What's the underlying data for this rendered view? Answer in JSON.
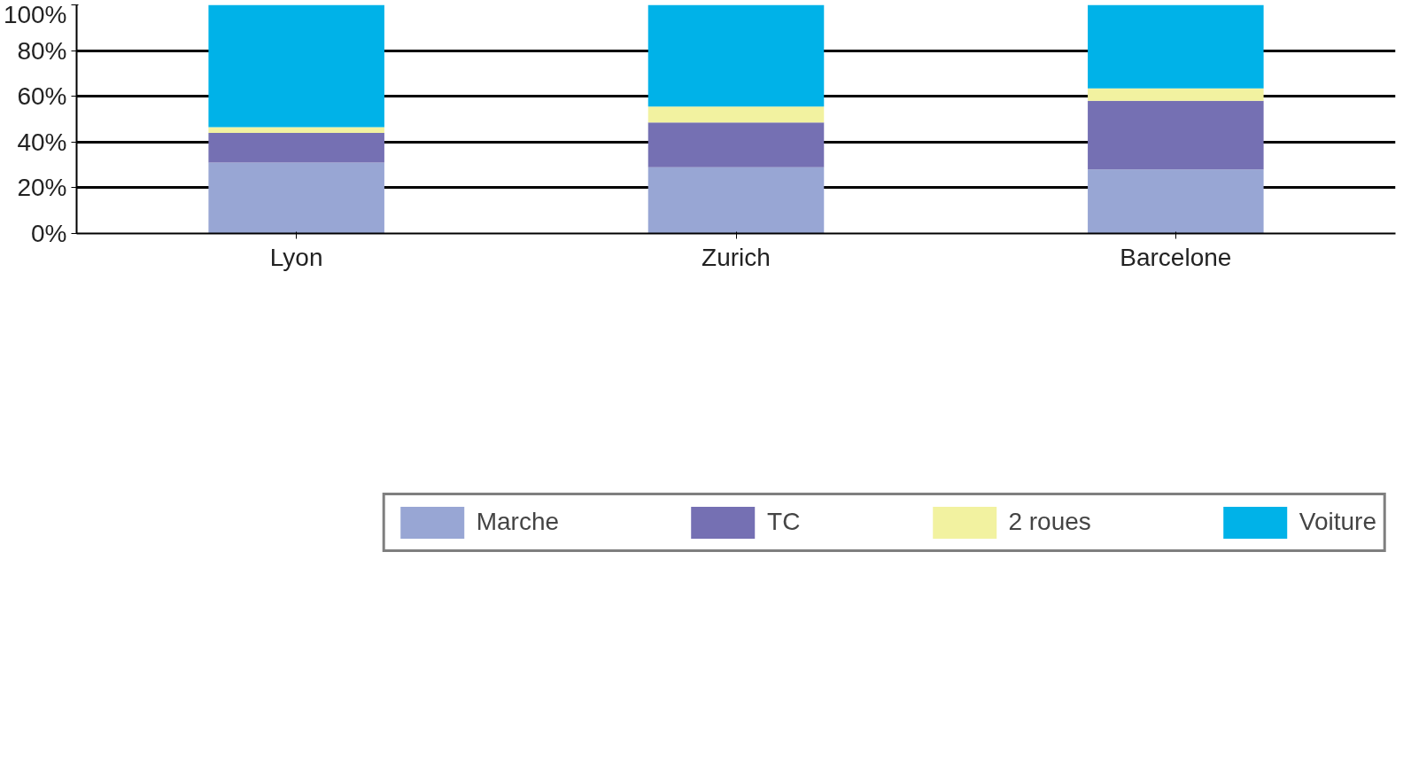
{
  "chart_data": {
    "type": "bar",
    "stacked": true,
    "categories": [
      "Lyon",
      "Zurich",
      "Barcelone"
    ],
    "series": [
      {
        "name": "Marche",
        "color": "#98a6d4",
        "values": [
          31,
          29,
          28
        ]
      },
      {
        "name": "TC",
        "color": "#7570b3",
        "values": [
          13,
          19.5,
          30
        ]
      },
      {
        "name": "2 roues",
        "color": "#f2f2a0",
        "values": [
          2.5,
          7,
          5.5
        ]
      },
      {
        "name": "Voiture",
        "color": "#00b2e8",
        "values": [
          53.5,
          44.5,
          36.5
        ]
      }
    ],
    "ylim": [
      0,
      100
    ],
    "yticks": [
      {
        "value": 0,
        "label": "0%"
      },
      {
        "value": 20,
        "label": "20%"
      },
      {
        "value": 40,
        "label": "40%"
      },
      {
        "value": 60,
        "label": "60%"
      },
      {
        "value": 80,
        "label": "80%"
      },
      {
        "value": 100,
        "label": "100%"
      }
    ],
    "grid": "y",
    "legend": "bottom"
  }
}
